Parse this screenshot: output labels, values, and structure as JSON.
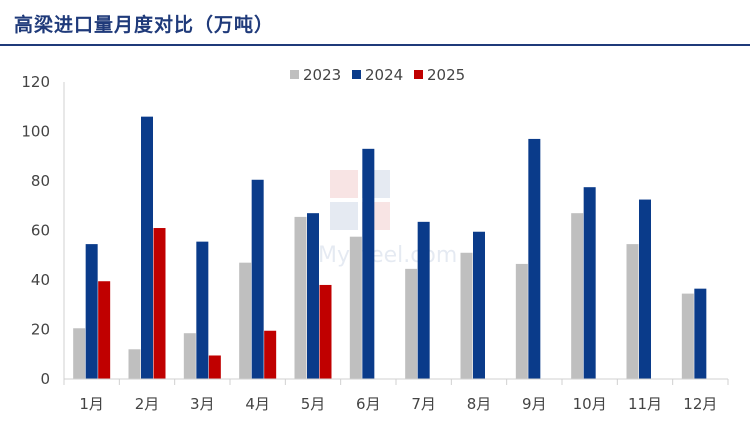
{
  "chart_data": {
    "type": "bar",
    "title": "高梁进口量月度对比（万吨）",
    "categories": [
      "1月",
      "2月",
      "3月",
      "4月",
      "5月",
      "6月",
      "7月",
      "8月",
      "9月",
      "10月",
      "11月",
      "12月"
    ],
    "series": [
      {
        "name": "2023",
        "color": "#bfbfbf",
        "values": [
          20.5,
          12,
          18.5,
          47,
          65.5,
          57.5,
          44.5,
          51,
          46.5,
          67,
          54.5,
          34.5
        ]
      },
      {
        "name": "2024",
        "color": "#0a3b8a",
        "values": [
          54.5,
          106,
          55.5,
          80.5,
          67,
          93,
          63.5,
          59.5,
          97,
          77.5,
          72.5,
          36.5
        ]
      },
      {
        "name": "2025",
        "color": "#c00000",
        "values": [
          39.5,
          61,
          9.5,
          19.5,
          38,
          null,
          null,
          null,
          null,
          null,
          null,
          null
        ]
      }
    ],
    "ylim": [
      0,
      120
    ],
    "yticks": [
      0,
      20,
      40,
      60,
      80,
      100,
      120
    ],
    "legend_position": "top-center",
    "grid": false
  }
}
